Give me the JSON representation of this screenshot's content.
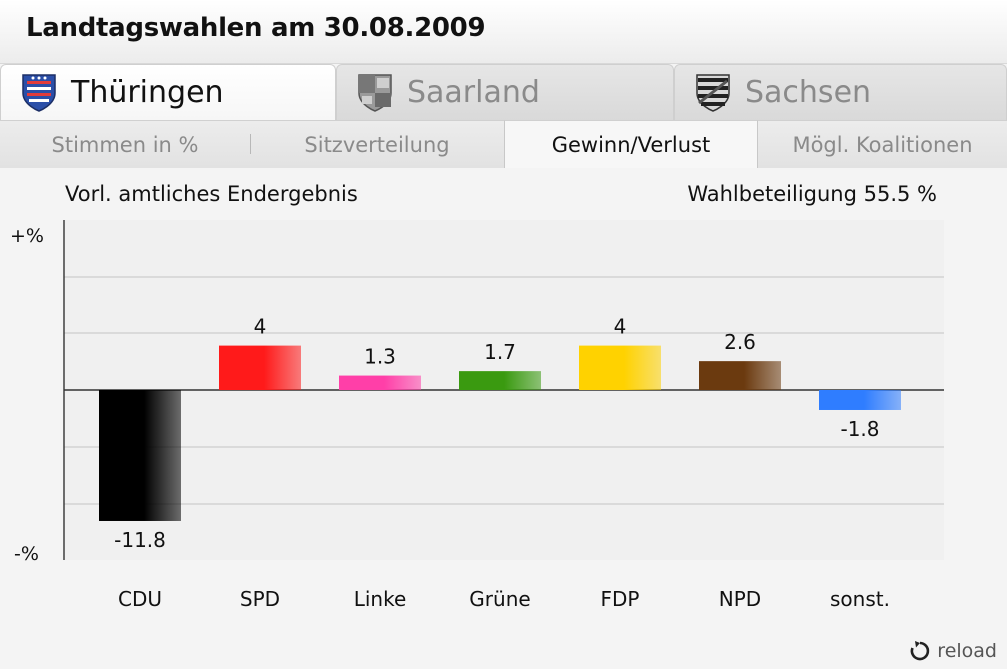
{
  "header": {
    "title": "Landtagswahlen am 30.08.2009"
  },
  "state_tabs": [
    {
      "label": "Thüringen",
      "active": true,
      "icon": "thueringen-crest-icon"
    },
    {
      "label": "Saarland",
      "active": false,
      "icon": "saarland-crest-icon"
    },
    {
      "label": "Sachsen",
      "active": false,
      "icon": "sachsen-crest-icon"
    }
  ],
  "sub_tabs": [
    {
      "label": "Stimmen in %",
      "active": false
    },
    {
      "label": "Sitzverteilung",
      "active": false
    },
    {
      "label": "Gewinn/Verlust",
      "active": true
    },
    {
      "label": "Mögl. Koalitionen",
      "active": false
    }
  ],
  "info": {
    "status": "Vorl. amtliches Endergebnis",
    "turnout": "Wahlbeteiligung 55.5 %"
  },
  "chart_data": {
    "type": "bar",
    "categories": [
      "CDU",
      "SPD",
      "Linke",
      "Grüne",
      "FDP",
      "NPD",
      "sonst."
    ],
    "values": [
      -11.8,
      4,
      1.3,
      1.7,
      4,
      2.6,
      -1.8
    ],
    "value_labels": [
      "-11.8",
      "4",
      "1.3",
      "1.7",
      "4",
      "2.6",
      "-1.8"
    ],
    "colors": [
      "#000000",
      "#ff1a1a",
      "#ff3fa8",
      "#3a9a10",
      "#ffd200",
      "#6b3a0f",
      "#2f7dff"
    ],
    "y_top_label": "+%",
    "y_bottom_label": "-%",
    "ylim": [
      -15,
      15
    ],
    "grid": true
  },
  "reload": {
    "label": "reload",
    "icon": "reload-icon"
  }
}
